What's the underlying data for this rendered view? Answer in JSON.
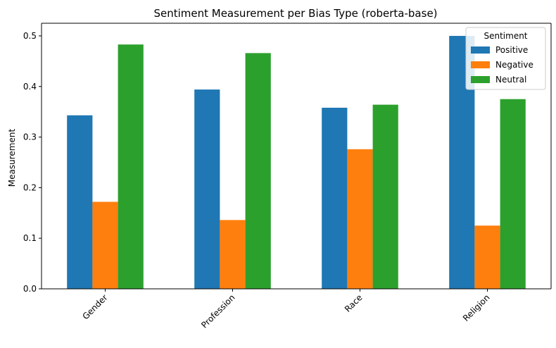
{
  "chart_data": {
    "type": "bar",
    "title": "Sentiment Measurement per Bias Type (roberta-base)",
    "xlabel": "",
    "ylabel": "Measurement",
    "categories": [
      "Gender",
      "Profession",
      "Race",
      "Religion"
    ],
    "series": [
      {
        "name": "Positive",
        "color": "#1f77b4",
        "values": [
          0.343,
          0.394,
          0.358,
          0.5
        ]
      },
      {
        "name": "Negative",
        "color": "#ff7f0e",
        "values": [
          0.172,
          0.136,
          0.276,
          0.125
        ]
      },
      {
        "name": "Neutral",
        "color": "#2ca02c",
        "values": [
          0.483,
          0.466,
          0.364,
          0.375
        ]
      }
    ],
    "ylim": [
      0,
      0.525
    ],
    "yticks": [
      "0.0",
      "0.1",
      "0.2",
      "0.3",
      "0.4",
      "0.5"
    ],
    "legend": {
      "title": "Sentiment",
      "placement": "top-right"
    },
    "grid": false
  }
}
